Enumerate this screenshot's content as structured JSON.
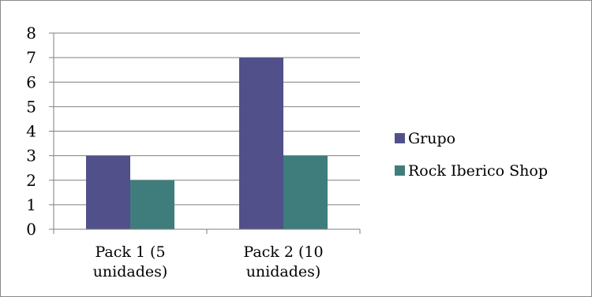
{
  "chart_data": {
    "type": "bar",
    "categories": [
      [
        "Pack 1 (5",
        "unidades)"
      ],
      [
        "Pack 2 (10",
        "unidades)"
      ]
    ],
    "series": [
      {
        "name": "Grupo",
        "values": [
          3,
          7
        ],
        "color": "#51508a"
      },
      {
        "name": "Rock Iberico Shop",
        "values": [
          2,
          3
        ],
        "color": "#3f7d7d"
      }
    ],
    "ylim": [
      0,
      8
    ],
    "yticks": [
      0,
      1,
      2,
      3,
      4,
      5,
      6,
      7,
      8
    ],
    "grid": true,
    "legend_position": "right"
  }
}
